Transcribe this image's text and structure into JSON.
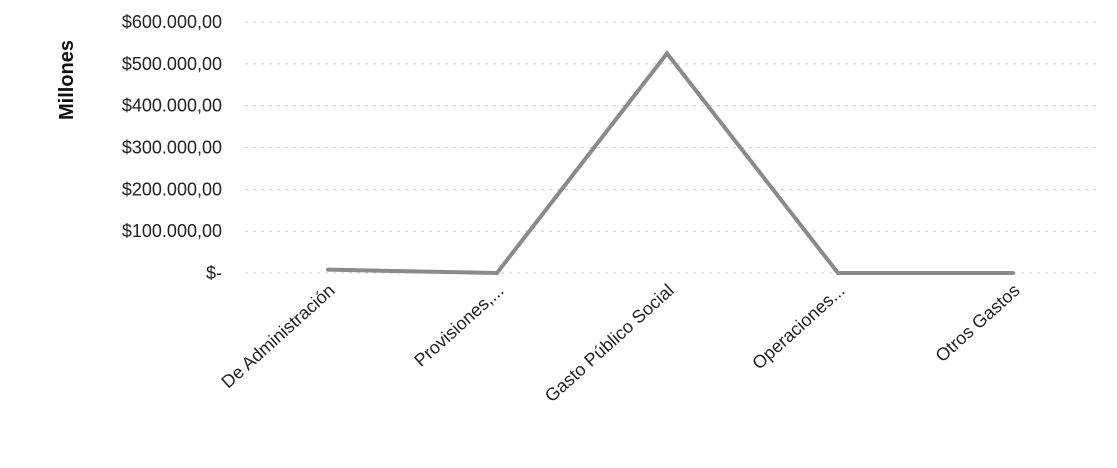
{
  "chart_data": {
    "type": "line",
    "title": "",
    "xlabel": "",
    "ylabel": "Millones",
    "categories": [
      "De Administración",
      "Provisiones,...",
      "Gasto Público Social",
      "Operaciones...",
      "Otros Gastos"
    ],
    "series": [
      {
        "values": [
          8000,
          0,
          525000,
          0,
          0
        ]
      }
    ],
    "ylim": [
      0,
      600000
    ],
    "yticks": [
      {
        "value": 0,
        "label": "$-"
      },
      {
        "value": 100000,
        "label": "$100.000,00"
      },
      {
        "value": 200000,
        "label": "$200.000,00"
      },
      {
        "value": 300000,
        "label": "$300.000,00"
      },
      {
        "value": 400000,
        "label": "$400.000,00"
      },
      {
        "value": 500000,
        "label": "$500.000,00"
      },
      {
        "value": 600000,
        "label": "$600.000,00"
      }
    ],
    "grid": true,
    "legend": "none",
    "colors": {
      "line": "#8a8a8a",
      "grid": "#c8c8c8",
      "text": "#222222"
    }
  }
}
